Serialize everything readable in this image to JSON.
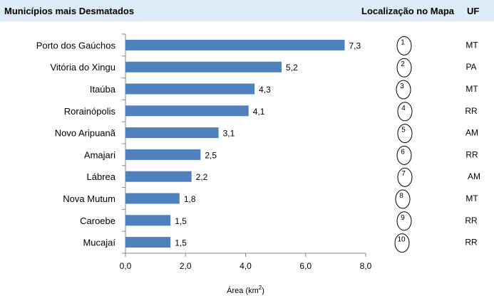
{
  "header": {
    "title": "Municípios mais Desmatados",
    "location_col": "Localização no Mapa",
    "uf_col": "UF"
  },
  "chart_data": {
    "type": "bar",
    "orientation": "horizontal",
    "title": "Municípios mais Desmatados",
    "xlabel_prefix": "Área (km",
    "xlabel_sup": "2",
    "xlabel_suffix": ")",
    "ylabel": "",
    "xlim": [
      0,
      8
    ],
    "xticks": [
      "0,0",
      "2,0",
      "4,0",
      "6,0",
      "8,0"
    ],
    "categories": [
      "Porto dos Gaúchos",
      "Vitória do Xingu",
      "Itaúba",
      "Rorainópolis",
      "Novo Aripuanã",
      "Amajari",
      "Lábrea",
      "Nova Mutum",
      "Caroebe",
      "Mucajaí"
    ],
    "values": [
      7.3,
      5.2,
      4.3,
      4.1,
      3.1,
      2.5,
      2.2,
      1.8,
      1.5,
      1.5
    ],
    "value_labels": [
      "7,3",
      "5,2",
      "4,3",
      "4,1",
      "3,1",
      "2,5",
      "2,2",
      "1,8",
      "1,5",
      "1,5"
    ],
    "map_locations": [
      "1",
      "2",
      "3",
      "4",
      "5",
      "6",
      "7",
      "8",
      "9",
      "10"
    ],
    "uf": [
      "MT",
      "PA",
      "MT",
      "RR",
      "AM",
      "RR",
      "AM",
      "MT",
      "RR",
      "RR"
    ],
    "bar_color": "#4f81bd",
    "grid": false
  }
}
